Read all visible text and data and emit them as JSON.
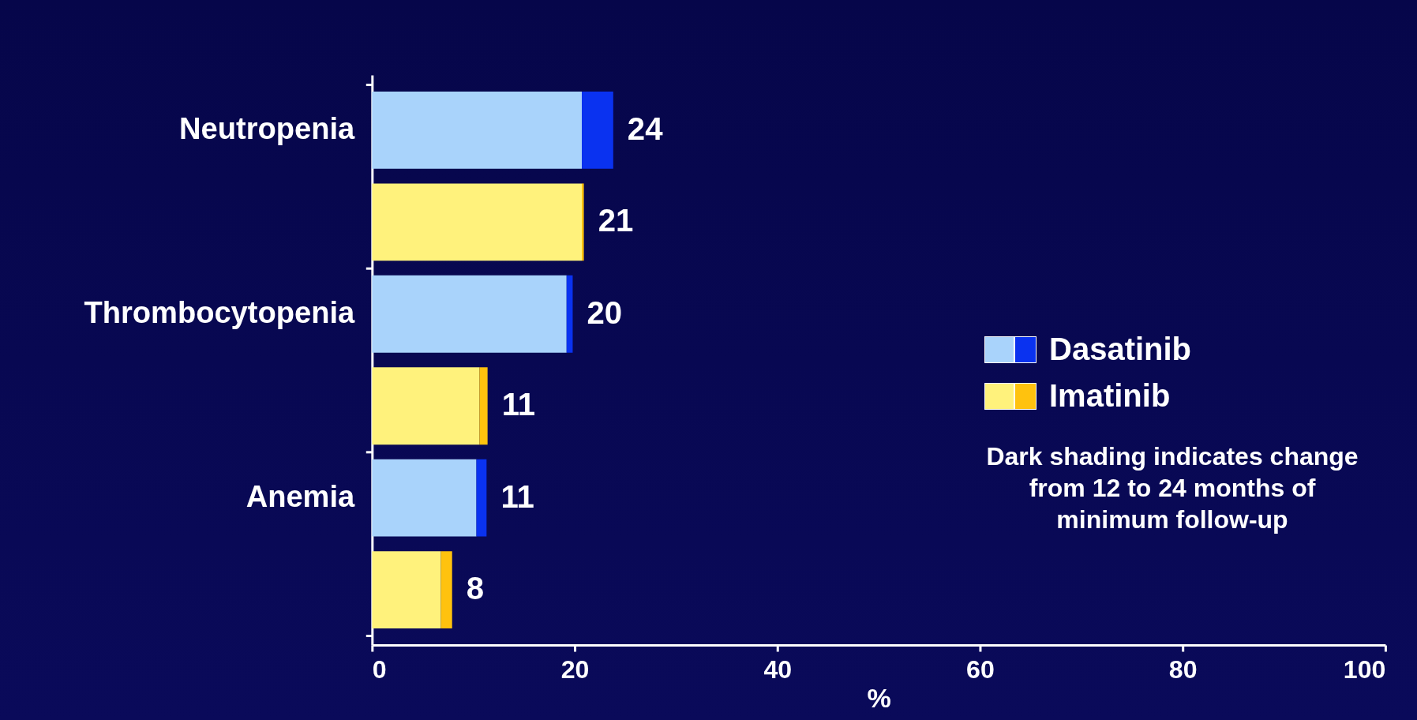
{
  "chart_data": {
    "type": "bar",
    "orientation": "horizontal",
    "stacked": true,
    "categories": [
      "Neutropenia",
      null,
      "Thrombocytopenia",
      null,
      "Anemia",
      null
    ],
    "series": [
      {
        "name": "Dasatinib",
        "color": "#a9d3fb",
        "values": [
          20.7,
          null,
          19.2,
          null,
          10.3,
          null
        ]
      },
      {
        "color": "#0a32f0",
        "values": [
          3.1,
          null,
          0.6,
          null,
          1.0,
          null
        ]
      },
      {
        "name": "Imatinib",
        "color": "#fff27c",
        "values": [
          null,
          20.7,
          null,
          10.6,
          null,
          6.8
        ]
      },
      {
        "color": "#ffc20e",
        "values": [
          null,
          0.2,
          null,
          0.8,
          null,
          1.1
        ]
      }
    ],
    "totals": [
      "24",
      "21",
      "20",
      "11",
      "11",
      "8"
    ],
    "xlabel": "%",
    "xlim": [
      0,
      100
    ],
    "xticks": [
      0,
      20,
      40,
      60,
      80,
      100
    ],
    "grid": false,
    "legend": "right",
    "annotations": [
      "Dark shading indicates change from 12 to 24 months of minimum follow-up"
    ]
  }
}
